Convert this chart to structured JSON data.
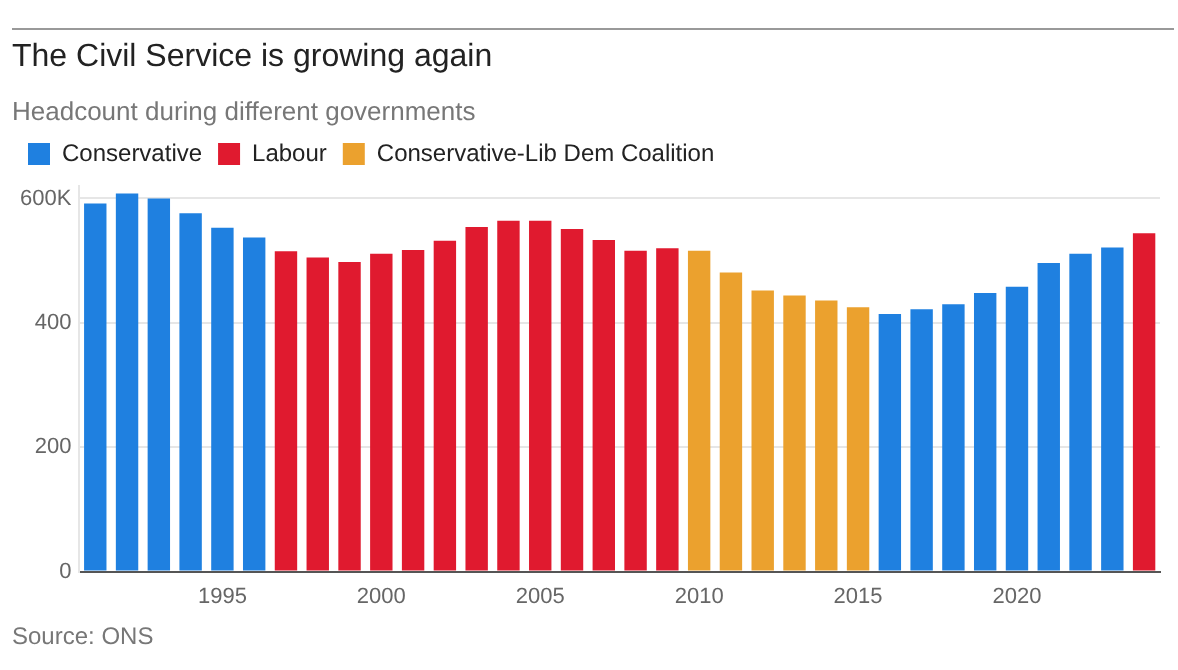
{
  "chart_data": {
    "type": "bar",
    "title": "The Civil Service is growing again",
    "subtitle": "Headcount during different governments",
    "categories": [
      null,
      null,
      null,
      null,
      "1995",
      null,
      null,
      null,
      null,
      "2000",
      null,
      null,
      null,
      null,
      "2005",
      null,
      null,
      null,
      null,
      "2010",
      null,
      null,
      null,
      null,
      "2015",
      null,
      null,
      null,
      null,
      "2020",
      null,
      null,
      null,
      null
    ],
    "series": [
      {
        "name": "Conservative",
        "color": "#1f80e0",
        "values": [
          592,
          608,
          600,
          576,
          553,
          537,
          null,
          null,
          null,
          null,
          null,
          null,
          null,
          null,
          null,
          null,
          null,
          null,
          null,
          null,
          null,
          null,
          null,
          null,
          null,
          414,
          422,
          430,
          448,
          458,
          496,
          511,
          521,
          null
        ]
      },
      {
        "name": "Labour",
        "color": "#e01a2f",
        "values": [
          null,
          null,
          null,
          null,
          null,
          null,
          515,
          505,
          498,
          511,
          517,
          532,
          554,
          564,
          564,
          551,
          533,
          516,
          520,
          null,
          null,
          null,
          null,
          null,
          null,
          null,
          null,
          null,
          null,
          null,
          null,
          null,
          null,
          544
        ]
      },
      {
        "name": "Conservative-Lib Dem Coalition",
        "color": "#eba12e",
        "values": [
          null,
          null,
          null,
          null,
          null,
          null,
          null,
          null,
          null,
          null,
          null,
          null,
          null,
          null,
          null,
          null,
          null,
          null,
          null,
          516,
          481,
          452,
          444,
          436,
          425,
          null,
          null,
          null,
          null,
          null,
          null,
          null,
          null,
          null
        ]
      }
    ],
    "ylim": [
      0,
      620
    ],
    "yticks": [
      0,
      200,
      400,
      {
        "value": 600,
        "label": "600K"
      }
    ],
    "grid": "y",
    "legend": "top left",
    "annotations": [
      "Source: ONS"
    ]
  }
}
